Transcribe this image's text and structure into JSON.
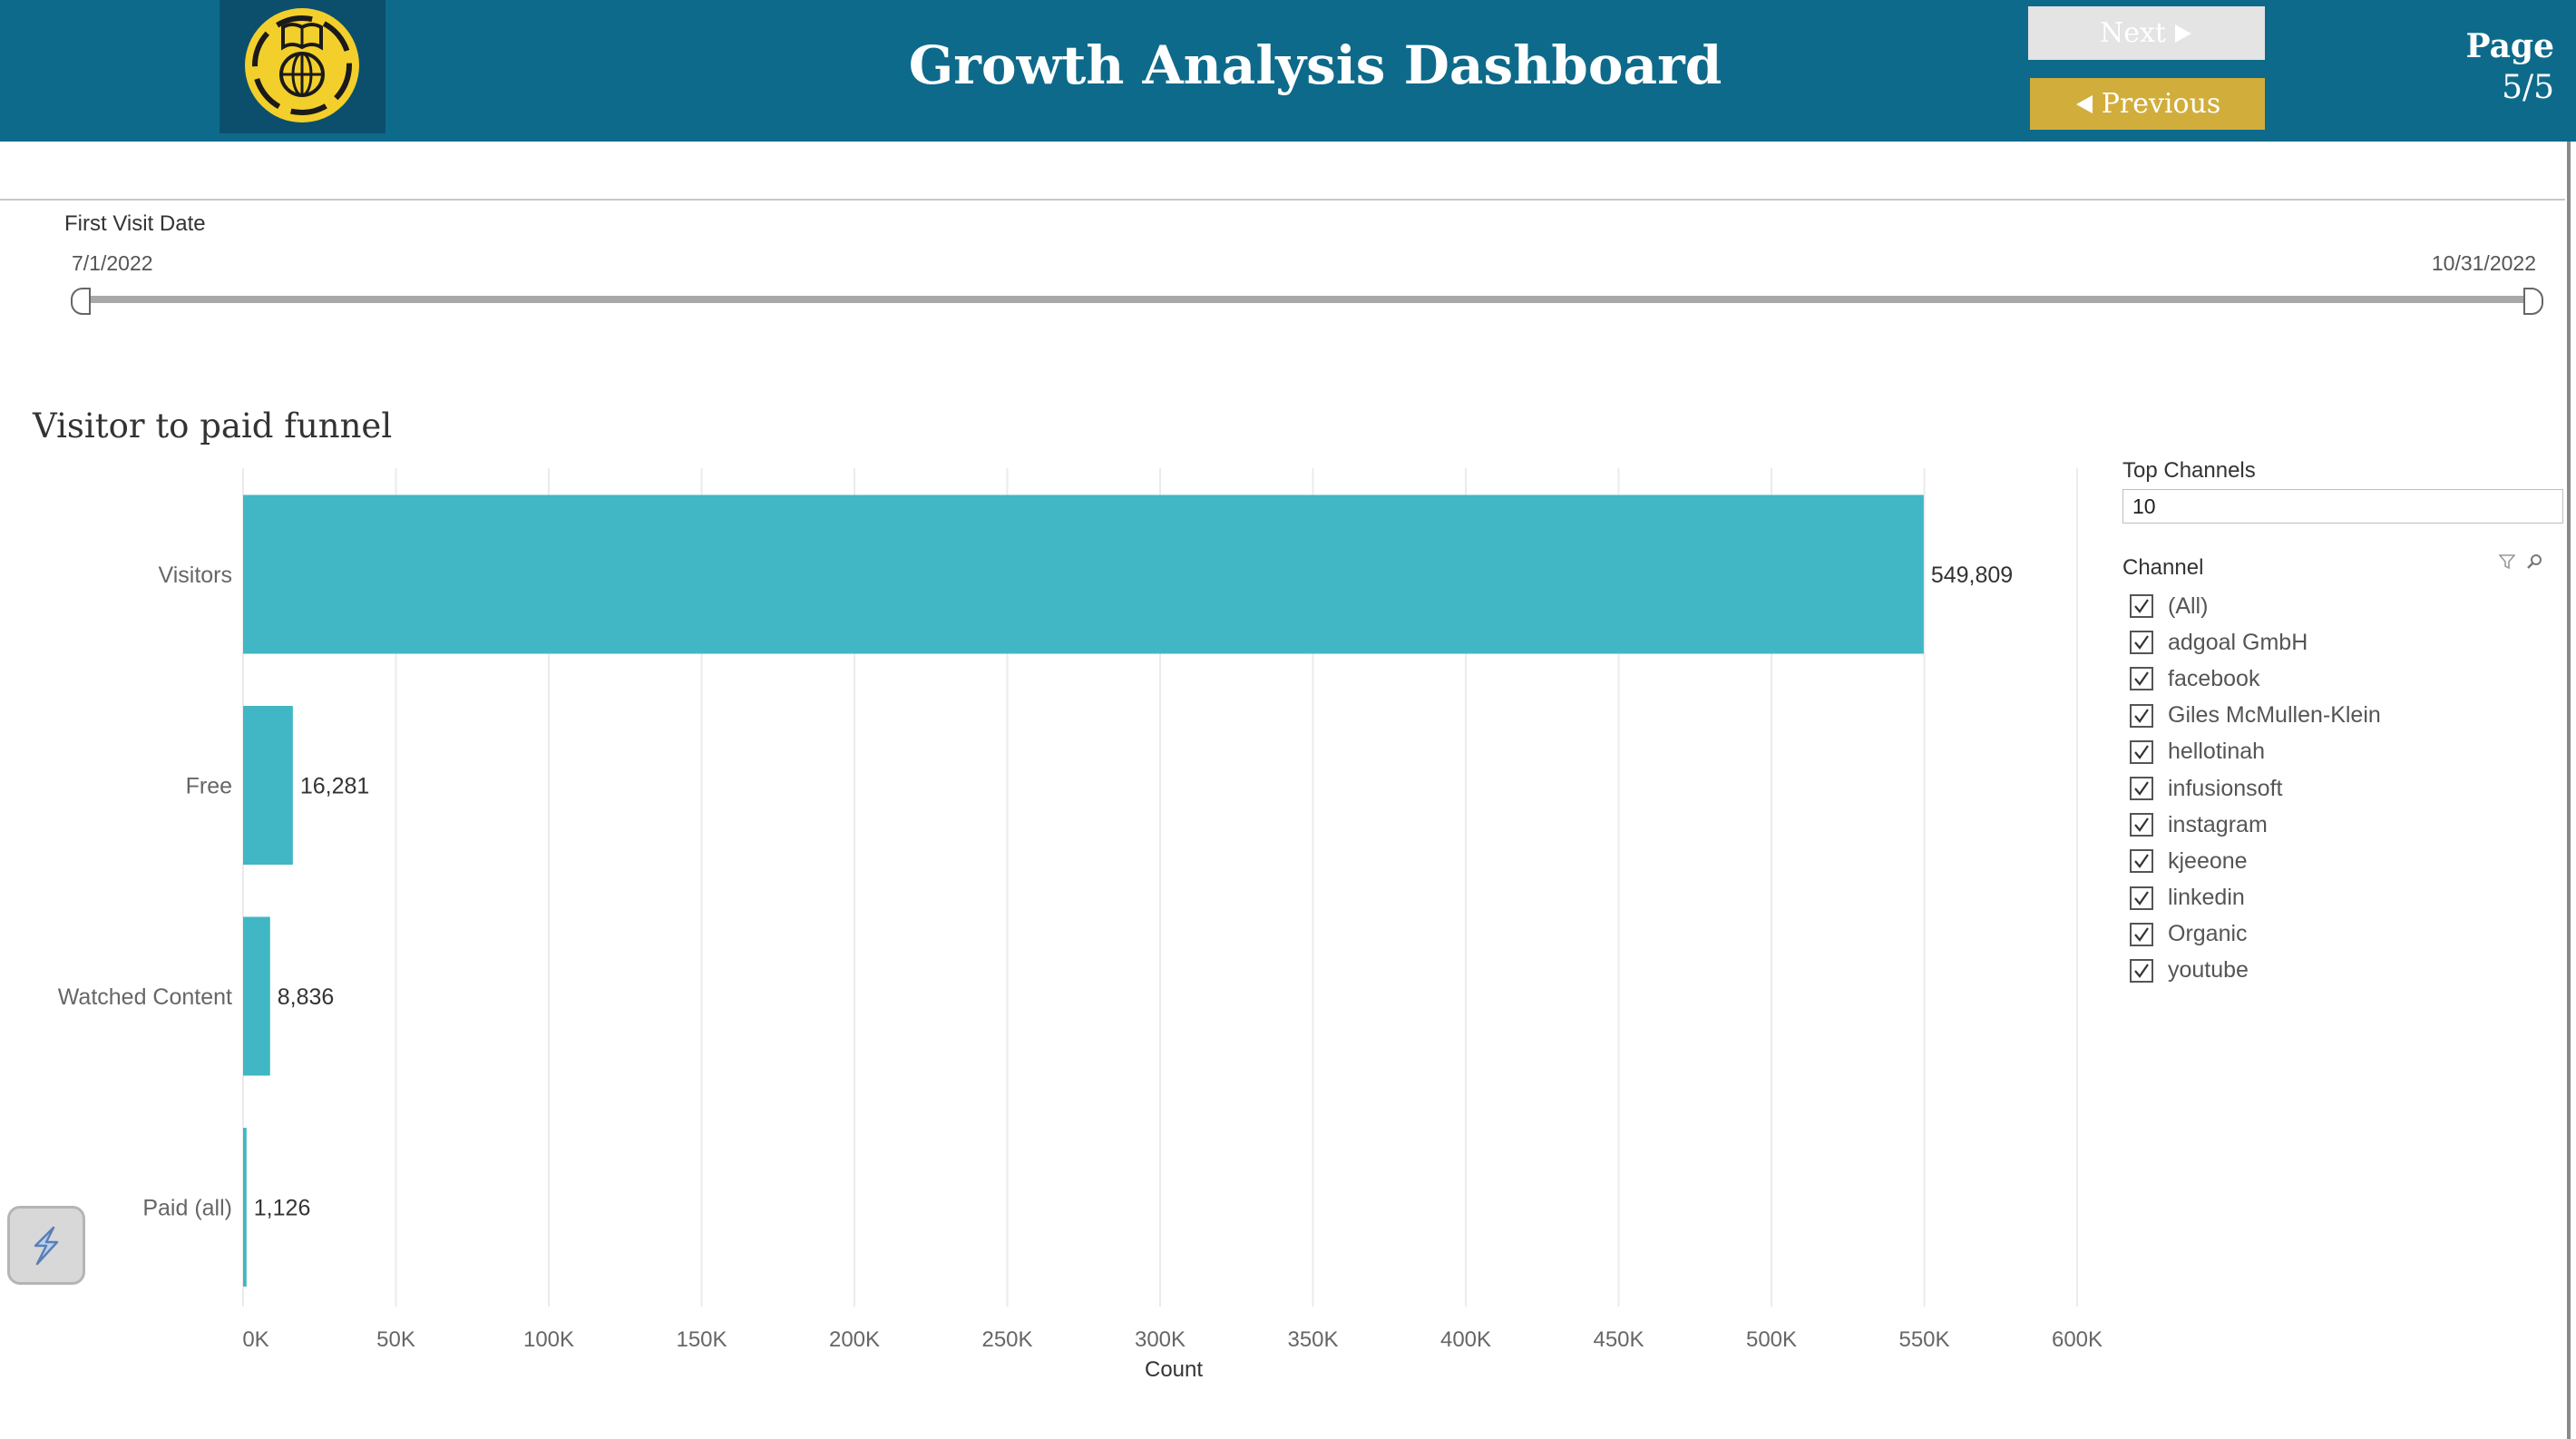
{
  "header": {
    "title": "Growth Analysis Dashboard",
    "next_label": "Next",
    "prev_label": "Previous",
    "page_word": "Page",
    "page_number": "5/5",
    "colors": {
      "bar": "#0e6a8a",
      "logo_bg": "#0b4f6c",
      "logo_badge": "#f3cf2b",
      "prev_button": "#d1ad3c",
      "next_button": "#e4e4e4"
    }
  },
  "date_filter": {
    "title": "First Visit Date",
    "start": "7/1/2022",
    "end": "10/31/2022"
  },
  "chart_data": {
    "type": "bar",
    "orientation": "horizontal",
    "title": "Visitor to paid funnel",
    "categories": [
      "Visitors",
      "Free",
      "Watched Content",
      "Paid (all)"
    ],
    "values": [
      549809,
      16281,
      8836,
      1126
    ],
    "value_labels": [
      "549,809",
      "16,281",
      "8,836",
      "1,126"
    ],
    "xlabel": "Count",
    "ylabel": "",
    "xlim": [
      0,
      600000
    ],
    "xticks": [
      0,
      50000,
      100000,
      150000,
      200000,
      250000,
      300000,
      350000,
      400000,
      450000,
      500000,
      550000,
      600000
    ],
    "xtick_labels": [
      "0K",
      "50K",
      "100K",
      "150K",
      "200K",
      "250K",
      "300K",
      "350K",
      "400K",
      "450K",
      "500K",
      "550K",
      "600K"
    ],
    "grid": true,
    "bar_color": "#41b6c4"
  },
  "top_channels": {
    "label": "Top Channels",
    "value": "10"
  },
  "channel_filter": {
    "label": "Channel",
    "items": [
      {
        "label": "(All)",
        "checked": true
      },
      {
        "label": "adgoal GmbH",
        "checked": true
      },
      {
        "label": "facebook",
        "checked": true
      },
      {
        "label": "Giles McMullen-Klein",
        "checked": true
      },
      {
        "label": "hellotinah",
        "checked": true
      },
      {
        "label": "infusionsoft",
        "checked": true
      },
      {
        "label": "instagram",
        "checked": true
      },
      {
        "label": "kjeeone",
        "checked": true
      },
      {
        "label": "linkedin",
        "checked": true
      },
      {
        "label": "Organic",
        "checked": true
      },
      {
        "label": "youtube",
        "checked": true
      }
    ]
  }
}
